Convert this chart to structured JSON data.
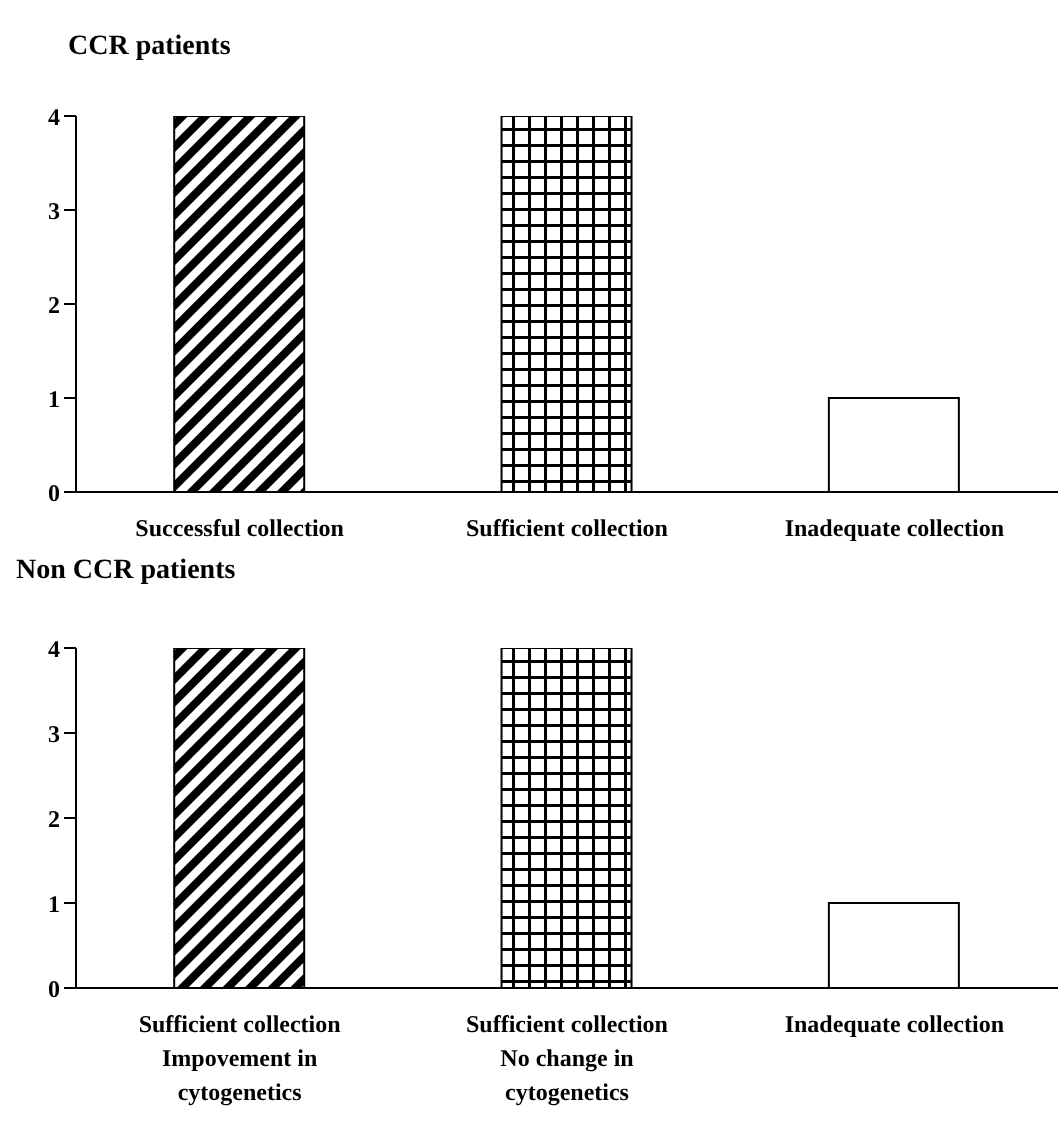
{
  "chart_data": [
    {
      "type": "bar",
      "title": "CCR patients",
      "categories": [
        "Successful collection",
        "Sufficient collection",
        "Inadequate collection"
      ],
      "values": [
        4,
        4,
        1
      ],
      "colors": [
        "#000000",
        "#000000",
        "#ffffff"
      ],
      "ylim": [
        0,
        4
      ],
      "yticks": [
        0,
        1,
        2,
        3,
        4
      ],
      "grid": false,
      "legend": false
    },
    {
      "type": "bar",
      "title": "Non CCR patients",
      "categories": [
        "Sufficient collection\nImpovement in\ncytogenetics",
        "Sufficient collection\nNo change in\ncytogenetics",
        "Inadequate collection"
      ],
      "values": [
        4,
        4,
        1
      ],
      "colors": [
        "#000000",
        "#000000",
        "#ffffff"
      ],
      "ylim": [
        0,
        4
      ],
      "yticks": [
        0,
        1,
        2,
        3,
        4
      ],
      "grid": false,
      "legend": false
    }
  ]
}
